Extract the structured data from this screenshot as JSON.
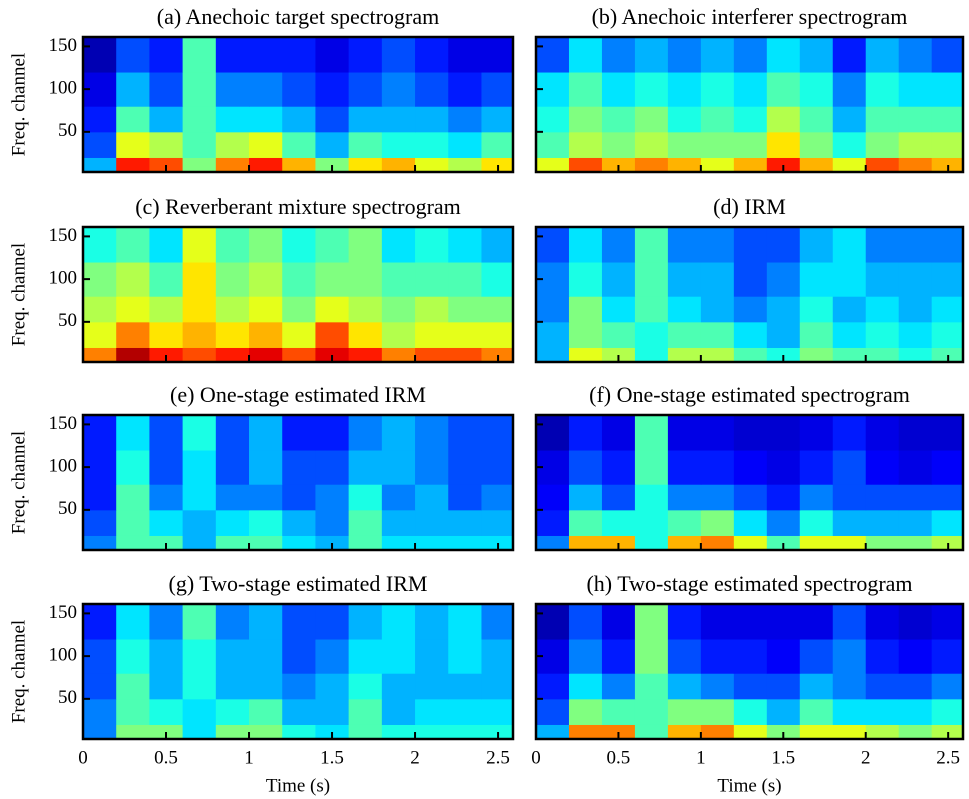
{
  "chart_data": [
    {
      "type": "heatmap",
      "title": "(a) Anechoic target spectrogram",
      "ylabel": "Freq. channel",
      "colormap": "jet",
      "x": [
        0,
        0.2,
        0.4,
        0.6,
        0.8,
        1.0,
        1.2,
        1.4,
        1.6,
        1.8,
        2.0,
        2.2,
        2.4,
        2.59
      ],
      "y": [
        3,
        20,
        50,
        80,
        120,
        161
      ],
      "z": [
        [
          0.3,
          0.85,
          0.8,
          0.5,
          0.75,
          0.85,
          0.7,
          0.5,
          0.65,
          0.7,
          0.6,
          0.55,
          0.65
        ],
        [
          0.2,
          0.6,
          0.55,
          0.45,
          0.55,
          0.6,
          0.45,
          0.3,
          0.45,
          0.4,
          0.4,
          0.35,
          0.45
        ],
        [
          0.15,
          0.45,
          0.3,
          0.45,
          0.35,
          0.35,
          0.3,
          0.2,
          0.3,
          0.3,
          0.3,
          0.25,
          0.3
        ],
        [
          0.1,
          0.3,
          0.2,
          0.45,
          0.25,
          0.25,
          0.2,
          0.15,
          0.2,
          0.25,
          0.2,
          0.15,
          0.2
        ],
        [
          0.05,
          0.2,
          0.15,
          0.45,
          0.15,
          0.15,
          0.15,
          0.1,
          0.15,
          0.2,
          0.15,
          0.1,
          0.1
        ]
      ],
      "xlim": [
        0,
        2.59
      ],
      "ylim": [
        3,
        161
      ],
      "xticks": [
        0,
        0.5,
        1,
        1.5,
        2,
        2.5
      ],
      "yticks": [
        50,
        100,
        150
      ],
      "show_xtick_labels": false,
      "show_ytick_labels": true
    },
    {
      "type": "heatmap",
      "title": "(b) Anechoic interferer spectrogram",
      "colormap": "jet",
      "x": [
        0,
        0.2,
        0.4,
        0.6,
        0.8,
        1.0,
        1.2,
        1.4,
        1.6,
        1.8,
        2.0,
        2.2,
        2.4,
        2.59
      ],
      "y": [
        3,
        20,
        50,
        80,
        120,
        161
      ],
      "z": [
        [
          0.6,
          0.8,
          0.7,
          0.75,
          0.7,
          0.6,
          0.7,
          0.85,
          0.7,
          0.6,
          0.8,
          0.75,
          0.7
        ],
        [
          0.45,
          0.55,
          0.5,
          0.55,
          0.5,
          0.5,
          0.5,
          0.65,
          0.5,
          0.4,
          0.5,
          0.55,
          0.55
        ],
        [
          0.4,
          0.5,
          0.45,
          0.5,
          0.4,
          0.45,
          0.4,
          0.55,
          0.45,
          0.3,
          0.45,
          0.45,
          0.45
        ],
        [
          0.35,
          0.45,
          0.35,
          0.4,
          0.35,
          0.4,
          0.35,
          0.45,
          0.4,
          0.25,
          0.4,
          0.35,
          0.35
        ],
        [
          0.2,
          0.35,
          0.25,
          0.3,
          0.25,
          0.3,
          0.25,
          0.35,
          0.3,
          0.15,
          0.3,
          0.25,
          0.2
        ]
      ],
      "xlim": [
        0,
        2.59
      ],
      "ylim": [
        3,
        161
      ],
      "xticks": [
        0,
        0.5,
        1,
        1.5,
        2,
        2.5
      ],
      "yticks": [
        50,
        100,
        150
      ],
      "show_xtick_labels": false,
      "show_ytick_labels": false
    },
    {
      "type": "heatmap",
      "title": "(c) Reverberant mixture spectrogram",
      "ylabel": "Freq. channel",
      "colormap": "jet",
      "x": [
        0,
        0.2,
        0.4,
        0.6,
        0.8,
        1.0,
        1.2,
        1.4,
        1.6,
        1.8,
        2.0,
        2.2,
        2.4,
        2.59
      ],
      "y": [
        3,
        20,
        50,
        80,
        120,
        161
      ],
      "z": [
        [
          0.75,
          0.95,
          0.85,
          0.8,
          0.85,
          0.9,
          0.8,
          0.9,
          0.85,
          0.75,
          0.8,
          0.8,
          0.75
        ],
        [
          0.6,
          0.75,
          0.65,
          0.7,
          0.65,
          0.7,
          0.6,
          0.8,
          0.65,
          0.55,
          0.6,
          0.6,
          0.6
        ],
        [
          0.55,
          0.6,
          0.55,
          0.65,
          0.55,
          0.6,
          0.5,
          0.6,
          0.55,
          0.5,
          0.55,
          0.5,
          0.5
        ],
        [
          0.5,
          0.55,
          0.45,
          0.65,
          0.5,
          0.55,
          0.45,
          0.5,
          0.5,
          0.45,
          0.45,
          0.45,
          0.4
        ],
        [
          0.4,
          0.45,
          0.35,
          0.6,
          0.45,
          0.5,
          0.4,
          0.45,
          0.5,
          0.35,
          0.4,
          0.35,
          0.3
        ]
      ],
      "xlim": [
        0,
        2.59
      ],
      "ylim": [
        3,
        161
      ],
      "xticks": [
        0,
        0.5,
        1,
        1.5,
        2,
        2.5
      ],
      "yticks": [
        50,
        100,
        150
      ],
      "show_xtick_labels": false,
      "show_ytick_labels": true
    },
    {
      "type": "heatmap",
      "title": "(d) IRM",
      "colormap": "jet",
      "x": [
        0,
        0.2,
        0.4,
        0.6,
        0.8,
        1.0,
        1.2,
        1.4,
        1.6,
        1.8,
        2.0,
        2.2,
        2.4,
        2.59
      ],
      "y": [
        3,
        20,
        50,
        80,
        120,
        161
      ],
      "z": [
        [
          0.3,
          0.6,
          0.55,
          0.4,
          0.55,
          0.55,
          0.45,
          0.4,
          0.5,
          0.45,
          0.45,
          0.4,
          0.45
        ],
        [
          0.3,
          0.5,
          0.45,
          0.4,
          0.45,
          0.45,
          0.35,
          0.3,
          0.45,
          0.35,
          0.4,
          0.35,
          0.4
        ],
        [
          0.25,
          0.5,
          0.35,
          0.45,
          0.35,
          0.3,
          0.25,
          0.3,
          0.4,
          0.3,
          0.35,
          0.3,
          0.35
        ],
        [
          0.25,
          0.4,
          0.3,
          0.45,
          0.3,
          0.3,
          0.2,
          0.25,
          0.35,
          0.35,
          0.3,
          0.3,
          0.3
        ],
        [
          0.2,
          0.35,
          0.25,
          0.45,
          0.25,
          0.25,
          0.2,
          0.2,
          0.3,
          0.35,
          0.25,
          0.25,
          0.25
        ]
      ],
      "xlim": [
        0,
        2.59
      ],
      "ylim": [
        3,
        161
      ],
      "xticks": [
        0,
        0.5,
        1,
        1.5,
        2,
        2.5
      ],
      "yticks": [
        50,
        100,
        150
      ],
      "show_xtick_labels": false,
      "show_ytick_labels": false
    },
    {
      "type": "heatmap",
      "title": "(e) One-stage estimated IRM",
      "ylabel": "Freq. channel",
      "colormap": "jet",
      "x": [
        0,
        0.2,
        0.4,
        0.6,
        0.8,
        1.0,
        1.2,
        1.4,
        1.6,
        1.8,
        2.0,
        2.2,
        2.4,
        2.59
      ],
      "y": [
        3,
        20,
        50,
        80,
        120,
        161
      ],
      "z": [
        [
          0.25,
          0.45,
          0.45,
          0.3,
          0.45,
          0.45,
          0.35,
          0.3,
          0.45,
          0.35,
          0.35,
          0.35,
          0.35
        ],
        [
          0.2,
          0.45,
          0.35,
          0.3,
          0.35,
          0.4,
          0.3,
          0.25,
          0.45,
          0.3,
          0.3,
          0.3,
          0.3
        ],
        [
          0.15,
          0.45,
          0.25,
          0.35,
          0.25,
          0.25,
          0.2,
          0.25,
          0.4,
          0.25,
          0.3,
          0.2,
          0.25
        ],
        [
          0.15,
          0.4,
          0.2,
          0.35,
          0.2,
          0.3,
          0.2,
          0.2,
          0.3,
          0.3,
          0.25,
          0.2,
          0.2
        ],
        [
          0.15,
          0.35,
          0.2,
          0.4,
          0.2,
          0.3,
          0.15,
          0.15,
          0.25,
          0.3,
          0.25,
          0.2,
          0.2
        ]
      ],
      "xlim": [
        0,
        2.59
      ],
      "ylim": [
        3,
        161
      ],
      "xticks": [
        0,
        0.5,
        1,
        1.5,
        2,
        2.5
      ],
      "yticks": [
        50,
        100,
        150
      ],
      "show_xtick_labels": false,
      "show_ytick_labels": true
    },
    {
      "type": "heatmap",
      "title": "(f) One-stage estimated spectrogram",
      "colormap": "jet",
      "x": [
        0,
        0.2,
        0.4,
        0.6,
        0.8,
        1.0,
        1.2,
        1.4,
        1.6,
        1.8,
        2.0,
        2.2,
        2.4,
        2.59
      ],
      "y": [
        3,
        20,
        50,
        80,
        120,
        161
      ],
      "z": [
        [
          0.25,
          0.7,
          0.7,
          0.4,
          0.7,
          0.75,
          0.6,
          0.45,
          0.6,
          0.6,
          0.5,
          0.5,
          0.55
        ],
        [
          0.15,
          0.45,
          0.4,
          0.4,
          0.45,
          0.5,
          0.35,
          0.25,
          0.4,
          0.3,
          0.3,
          0.3,
          0.35
        ],
        [
          0.12,
          0.3,
          0.2,
          0.4,
          0.25,
          0.25,
          0.2,
          0.15,
          0.25,
          0.2,
          0.2,
          0.2,
          0.2
        ],
        [
          0.1,
          0.2,
          0.15,
          0.45,
          0.15,
          0.15,
          0.12,
          0.1,
          0.15,
          0.2,
          0.12,
          0.1,
          0.12
        ],
        [
          0.05,
          0.15,
          0.1,
          0.45,
          0.1,
          0.1,
          0.08,
          0.08,
          0.1,
          0.15,
          0.1,
          0.08,
          0.08
        ]
      ],
      "xlim": [
        0,
        2.59
      ],
      "ylim": [
        3,
        161
      ],
      "xticks": [
        0,
        0.5,
        1,
        1.5,
        2,
        2.5
      ],
      "yticks": [
        50,
        100,
        150
      ],
      "show_xtick_labels": false,
      "show_ytick_labels": false
    },
    {
      "type": "heatmap",
      "title": "(g) Two-stage estimated IRM",
      "ylabel": "Freq. channel",
      "xlabel": "Time (s)",
      "colormap": "jet",
      "x": [
        0,
        0.2,
        0.4,
        0.6,
        0.8,
        1.0,
        1.2,
        1.4,
        1.6,
        1.8,
        2.0,
        2.2,
        2.4,
        2.59
      ],
      "y": [
        3,
        20,
        50,
        80,
        120,
        161
      ],
      "z": [
        [
          0.25,
          0.5,
          0.5,
          0.35,
          0.5,
          0.5,
          0.4,
          0.35,
          0.45,
          0.4,
          0.4,
          0.4,
          0.4
        ],
        [
          0.25,
          0.45,
          0.4,
          0.35,
          0.4,
          0.45,
          0.3,
          0.3,
          0.45,
          0.3,
          0.35,
          0.35,
          0.35
        ],
        [
          0.2,
          0.45,
          0.3,
          0.4,
          0.3,
          0.3,
          0.25,
          0.3,
          0.4,
          0.3,
          0.3,
          0.3,
          0.3
        ],
        [
          0.2,
          0.4,
          0.3,
          0.4,
          0.3,
          0.3,
          0.2,
          0.25,
          0.35,
          0.35,
          0.3,
          0.35,
          0.3
        ],
        [
          0.15,
          0.35,
          0.25,
          0.45,
          0.25,
          0.3,
          0.2,
          0.2,
          0.3,
          0.35,
          0.3,
          0.35,
          0.25
        ]
      ],
      "xlim": [
        0,
        2.59
      ],
      "ylim": [
        3,
        161
      ],
      "xticks": [
        0,
        0.5,
        1,
        1.5,
        2,
        2.5
      ],
      "yticks": [
        50,
        100,
        150
      ],
      "show_xtick_labels": true,
      "show_ytick_labels": true
    },
    {
      "type": "heatmap",
      "title": "(h) Two-stage estimated spectrogram",
      "xlabel": "Time (s)",
      "colormap": "jet",
      "x": [
        0,
        0.2,
        0.4,
        0.6,
        0.8,
        1.0,
        1.2,
        1.4,
        1.6,
        1.8,
        2.0,
        2.2,
        2.4,
        2.59
      ],
      "y": [
        3,
        20,
        50,
        80,
        120,
        161
      ],
      "z": [
        [
          0.3,
          0.75,
          0.75,
          0.45,
          0.7,
          0.75,
          0.6,
          0.5,
          0.6,
          0.6,
          0.55,
          0.5,
          0.55
        ],
        [
          0.2,
          0.5,
          0.45,
          0.45,
          0.5,
          0.5,
          0.4,
          0.3,
          0.45,
          0.35,
          0.35,
          0.35,
          0.4
        ],
        [
          0.15,
          0.35,
          0.25,
          0.45,
          0.3,
          0.25,
          0.2,
          0.2,
          0.3,
          0.25,
          0.2,
          0.2,
          0.25
        ],
        [
          0.1,
          0.25,
          0.15,
          0.5,
          0.2,
          0.15,
          0.15,
          0.12,
          0.2,
          0.25,
          0.15,
          0.12,
          0.15
        ],
        [
          0.05,
          0.2,
          0.1,
          0.5,
          0.15,
          0.1,
          0.1,
          0.1,
          0.1,
          0.2,
          0.1,
          0.08,
          0.1
        ]
      ],
      "xlim": [
        0,
        2.59
      ],
      "ylim": [
        3,
        161
      ],
      "xticks": [
        0,
        0.5,
        1,
        1.5,
        2,
        2.5
      ],
      "yticks": [
        50,
        100,
        150
      ],
      "show_xtick_labels": true,
      "show_ytick_labels": false
    }
  ]
}
